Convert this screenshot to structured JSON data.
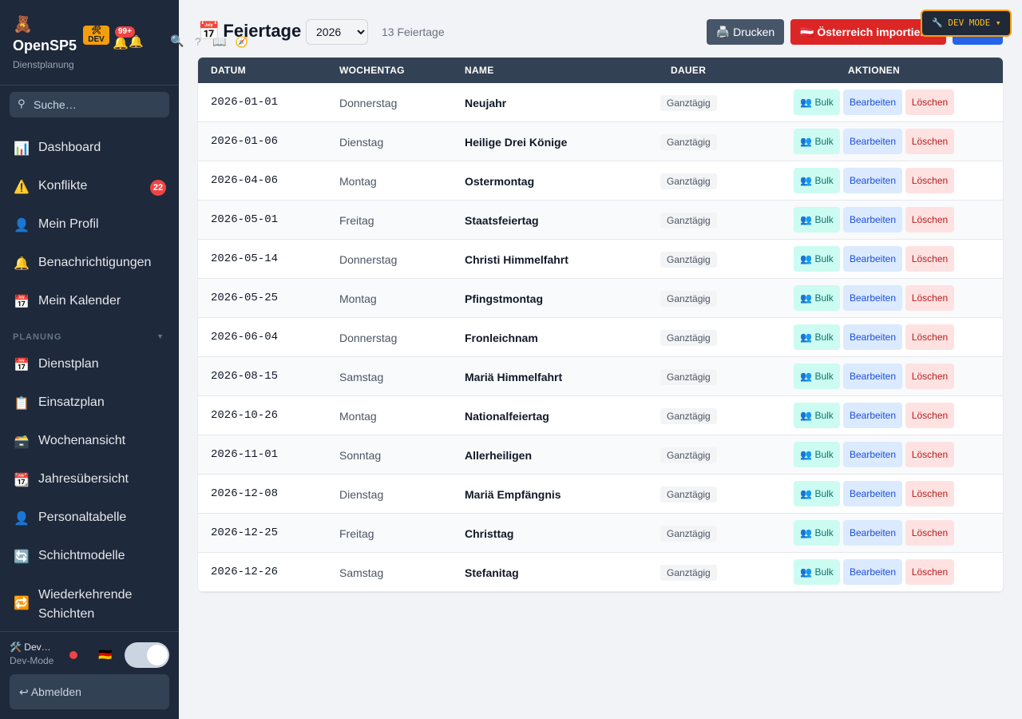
{
  "app": {
    "logo_icon": "🧸",
    "name": "OpenSP5",
    "subtitle": "Dienstplanung",
    "dev_badge_icon": "🛠",
    "dev_badge": "DEV",
    "notif_count": "99+",
    "search_placeholder": "Suche…"
  },
  "nav": [
    {
      "icon": "📊",
      "label": "Dashboard"
    },
    {
      "icon": "⚠️",
      "label": "Konflikte",
      "badge": "22"
    },
    {
      "icon": "👤",
      "label": "Mein Profil"
    },
    {
      "icon": "🔔",
      "label": "Benachrichtigungen"
    },
    {
      "icon": "📅",
      "label": "Mein Kalender"
    }
  ],
  "section_planung": "PLANUNG",
  "nav_planung": [
    {
      "icon": "📅",
      "label": "Dienstplan"
    },
    {
      "icon": "📋",
      "label": "Einsatzplan"
    },
    {
      "icon": "🗃️",
      "label": "Wochenansicht"
    },
    {
      "icon": "📆",
      "label": "Jahresübersicht"
    },
    {
      "icon": "👤",
      "label": "Personaltabelle"
    },
    {
      "icon": "🔄",
      "label": "Schichtmodelle"
    },
    {
      "icon": "🔁",
      "label_line1": "Wiederkehrende",
      "label_line2": "Schichten"
    }
  ],
  "footer": {
    "user": "🛠️ Dev…",
    "mode": "Dev-Mode",
    "flag": "🇩🇪",
    "logout": "↩ Abmelden"
  },
  "page": {
    "icon": "📅",
    "title": "Feiertage",
    "year": "2026",
    "count": "13 Feiertage",
    "print": "🖨️ Drucken",
    "import": "🇦🇹 Österreich importieren",
    "new": "+ Neu",
    "devmode": "🔧 DEV MODE ▾"
  },
  "table": {
    "headers": [
      "DATUM",
      "WOCHENTAG",
      "NAME",
      "DAUER",
      "AKTIONEN"
    ],
    "actions": {
      "bulk": "👥 Bulk",
      "edit": "Bearbeiten",
      "delete": "Löschen"
    },
    "rows": [
      {
        "date": "2026-01-01",
        "day": "Donnerstag",
        "name": "Neujahr",
        "duration": "Ganztägig"
      },
      {
        "date": "2026-01-06",
        "day": "Dienstag",
        "name": "Heilige Drei Könige",
        "duration": "Ganztägig"
      },
      {
        "date": "2026-04-06",
        "day": "Montag",
        "name": "Ostermontag",
        "duration": "Ganztägig"
      },
      {
        "date": "2026-05-01",
        "day": "Freitag",
        "name": "Staatsfeiertag",
        "duration": "Ganztägig"
      },
      {
        "date": "2026-05-14",
        "day": "Donnerstag",
        "name": "Christi Himmelfahrt",
        "duration": "Ganztägig"
      },
      {
        "date": "2026-05-25",
        "day": "Montag",
        "name": "Pfingstmontag",
        "duration": "Ganztägig"
      },
      {
        "date": "2026-06-04",
        "day": "Donnerstag",
        "name": "Fronleichnam",
        "duration": "Ganztägig"
      },
      {
        "date": "2026-08-15",
        "day": "Samstag",
        "name": "Mariä Himmelfahrt",
        "duration": "Ganztägig"
      },
      {
        "date": "2026-10-26",
        "day": "Montag",
        "name": "Nationalfeiertag",
        "duration": "Ganztägig"
      },
      {
        "date": "2026-11-01",
        "day": "Sonntag",
        "name": "Allerheiligen",
        "duration": "Ganztägig"
      },
      {
        "date": "2026-12-08",
        "day": "Dienstag",
        "name": "Mariä Empfängnis",
        "duration": "Ganztägig"
      },
      {
        "date": "2026-12-25",
        "day": "Freitag",
        "name": "Christtag",
        "duration": "Ganztägig"
      },
      {
        "date": "2026-12-26",
        "day": "Samstag",
        "name": "Stefanitag",
        "duration": "Ganztägig"
      }
    ]
  }
}
